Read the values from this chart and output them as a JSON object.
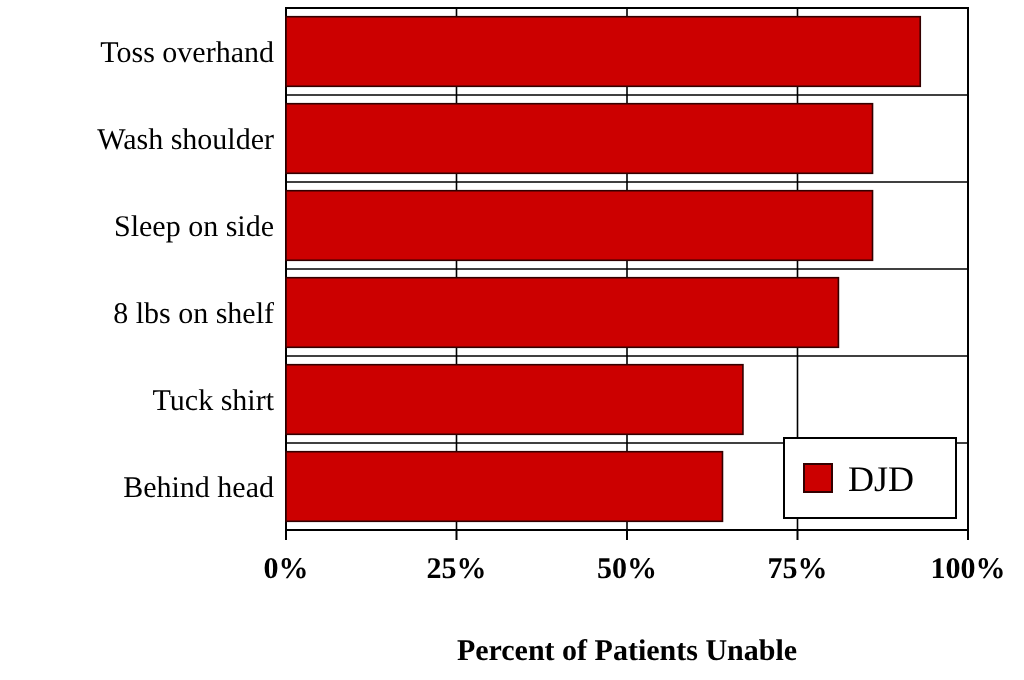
{
  "chart_data": {
    "type": "bar",
    "orientation": "horizontal",
    "xlabel": "Percent of Patients Unable",
    "categories": [
      "Toss overhand",
      "Wash shoulder",
      "Sleep on side",
      "8 lbs on shelf",
      "Tuck shirt",
      "Behind head"
    ],
    "series": [
      {
        "name": "DJD",
        "color": "#cc0000",
        "values": [
          93,
          86,
          86,
          81,
          67,
          64
        ]
      }
    ],
    "xlim": [
      0,
      100
    ],
    "xticks": [
      {
        "value": 0,
        "label": "0%"
      },
      {
        "value": 25,
        "label": "25%"
      },
      {
        "value": 50,
        "label": "50%"
      },
      {
        "value": 75,
        "label": "75%"
      },
      {
        "value": 100,
        "label": "100%"
      }
    ],
    "grid": true,
    "legend": "bottom right"
  }
}
